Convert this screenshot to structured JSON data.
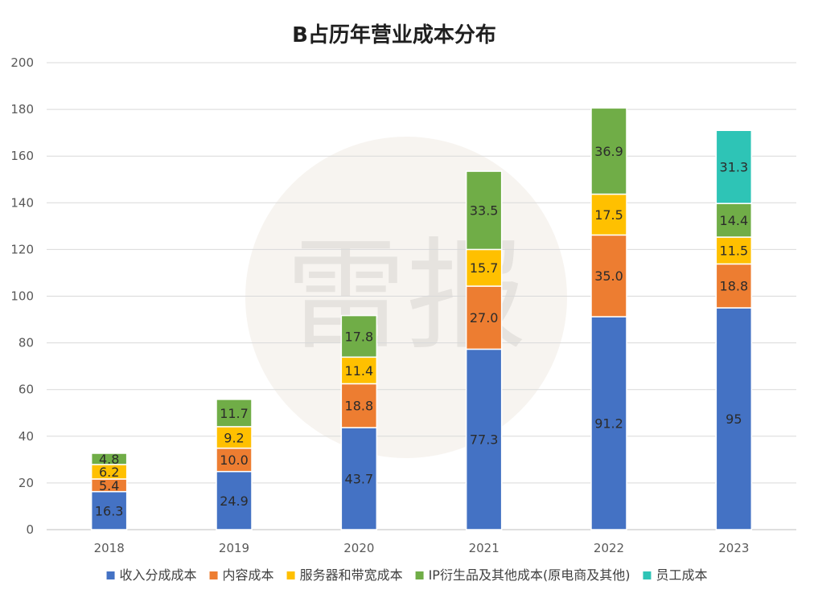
{
  "chart_data": {
    "type": "bar",
    "stacked": true,
    "title": "B占历年营业成本分布",
    "xlabel": "",
    "ylabel": "",
    "categories": [
      "2018",
      "2019",
      "2020",
      "2021",
      "2022",
      "2023"
    ],
    "ylim": [
      0,
      200
    ],
    "yticks": [
      0,
      20,
      40,
      60,
      80,
      100,
      120,
      140,
      160,
      180,
      200
    ],
    "grid": true,
    "legend_position": "bottom",
    "series": [
      {
        "name": "收入分成成本",
        "color": "#4472C4",
        "values": [
          16.3,
          24.9,
          43.7,
          77.3,
          91.2,
          95
        ],
        "labels": [
          "16.3",
          "24.9",
          "43.7",
          "77.3",
          "91.2",
          "95"
        ]
      },
      {
        "name": "内容成本",
        "color": "#ED7D31",
        "values": [
          5.4,
          10.0,
          18.8,
          27.0,
          35.0,
          18.8
        ],
        "labels": [
          "5.4",
          "10.0",
          "18.8",
          "27.0",
          "35.0",
          "18.8"
        ]
      },
      {
        "name": "服务器和带宽成本",
        "color": "#FFC000",
        "values": [
          6.2,
          9.2,
          11.4,
          15.7,
          17.5,
          11.5
        ],
        "labels": [
          "6.2",
          "9.2",
          "11.4",
          "15.7",
          "17.5",
          "11.5"
        ]
      },
      {
        "name": "IP衍生品及其他成本(原电商及其他)",
        "color": "#70AD47",
        "values": [
          4.8,
          11.7,
          17.8,
          33.5,
          36.9,
          14.4
        ],
        "labels": [
          "4.8",
          "11.7",
          "17.8",
          "33.5",
          "36.9",
          "14.4"
        ]
      },
      {
        "name": "员工成本",
        "color": "#2EC4B6",
        "values": [
          null,
          null,
          null,
          null,
          null,
          31.3
        ],
        "labels": [
          "",
          "",
          "",
          "",
          "",
          "31.3"
        ]
      }
    ]
  },
  "watermark": {
    "text": "雷报"
  }
}
